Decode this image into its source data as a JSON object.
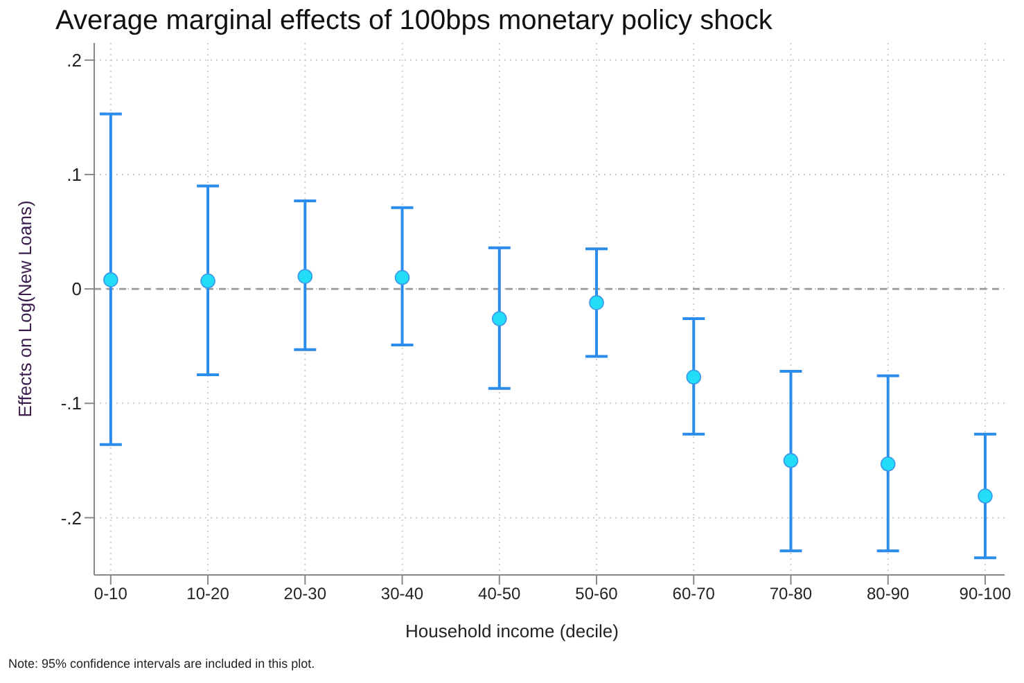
{
  "chart_data": {
    "type": "scatter",
    "title": "Average marginal effects of 100bps monetary policy shock",
    "xlabel": "Household income (decile)",
    "ylabel": "Effects on Log(New Loans)",
    "annotations": [
      "Note: 95% confidence intervals are included in this plot."
    ],
    "categories": [
      "0-10",
      "10-20",
      "20-30",
      "30-40",
      "40-50",
      "50-60",
      "60-70",
      "70-80",
      "80-90",
      "90-100"
    ],
    "series": [
      {
        "color": "#22dcf8",
        "marker": "circle",
        "values": [
          0.008,
          0.007,
          0.011,
          0.01,
          -0.026,
          -0.012,
          -0.077,
          -0.15,
          -0.153,
          -0.181
        ],
        "errors": [
          [
            -0.136,
            0.153
          ],
          [
            -0.075,
            0.09
          ],
          [
            -0.053,
            0.077
          ],
          [
            -0.049,
            0.071
          ],
          [
            -0.087,
            0.036
          ],
          [
            -0.059,
            0.035
          ],
          [
            -0.127,
            -0.026
          ],
          [
            -0.229,
            -0.072
          ],
          [
            -0.229,
            -0.076
          ],
          [
            -0.235,
            -0.127
          ]
        ]
      }
    ],
    "ylim": [
      -0.25,
      0.215
    ],
    "yticks": [
      {
        "value": -0.2,
        "label": "-.2"
      },
      {
        "value": -0.1,
        "label": "-.1"
      },
      0,
      {
        "value": 0.1,
        "label": ".1"
      },
      {
        "value": 0.2,
        "label": ".2"
      }
    ],
    "grid": true,
    "ref_lines": [
      {
        "axis": "y",
        "value": 0,
        "color": "#999999",
        "line_style": "dashed"
      }
    ]
  }
}
